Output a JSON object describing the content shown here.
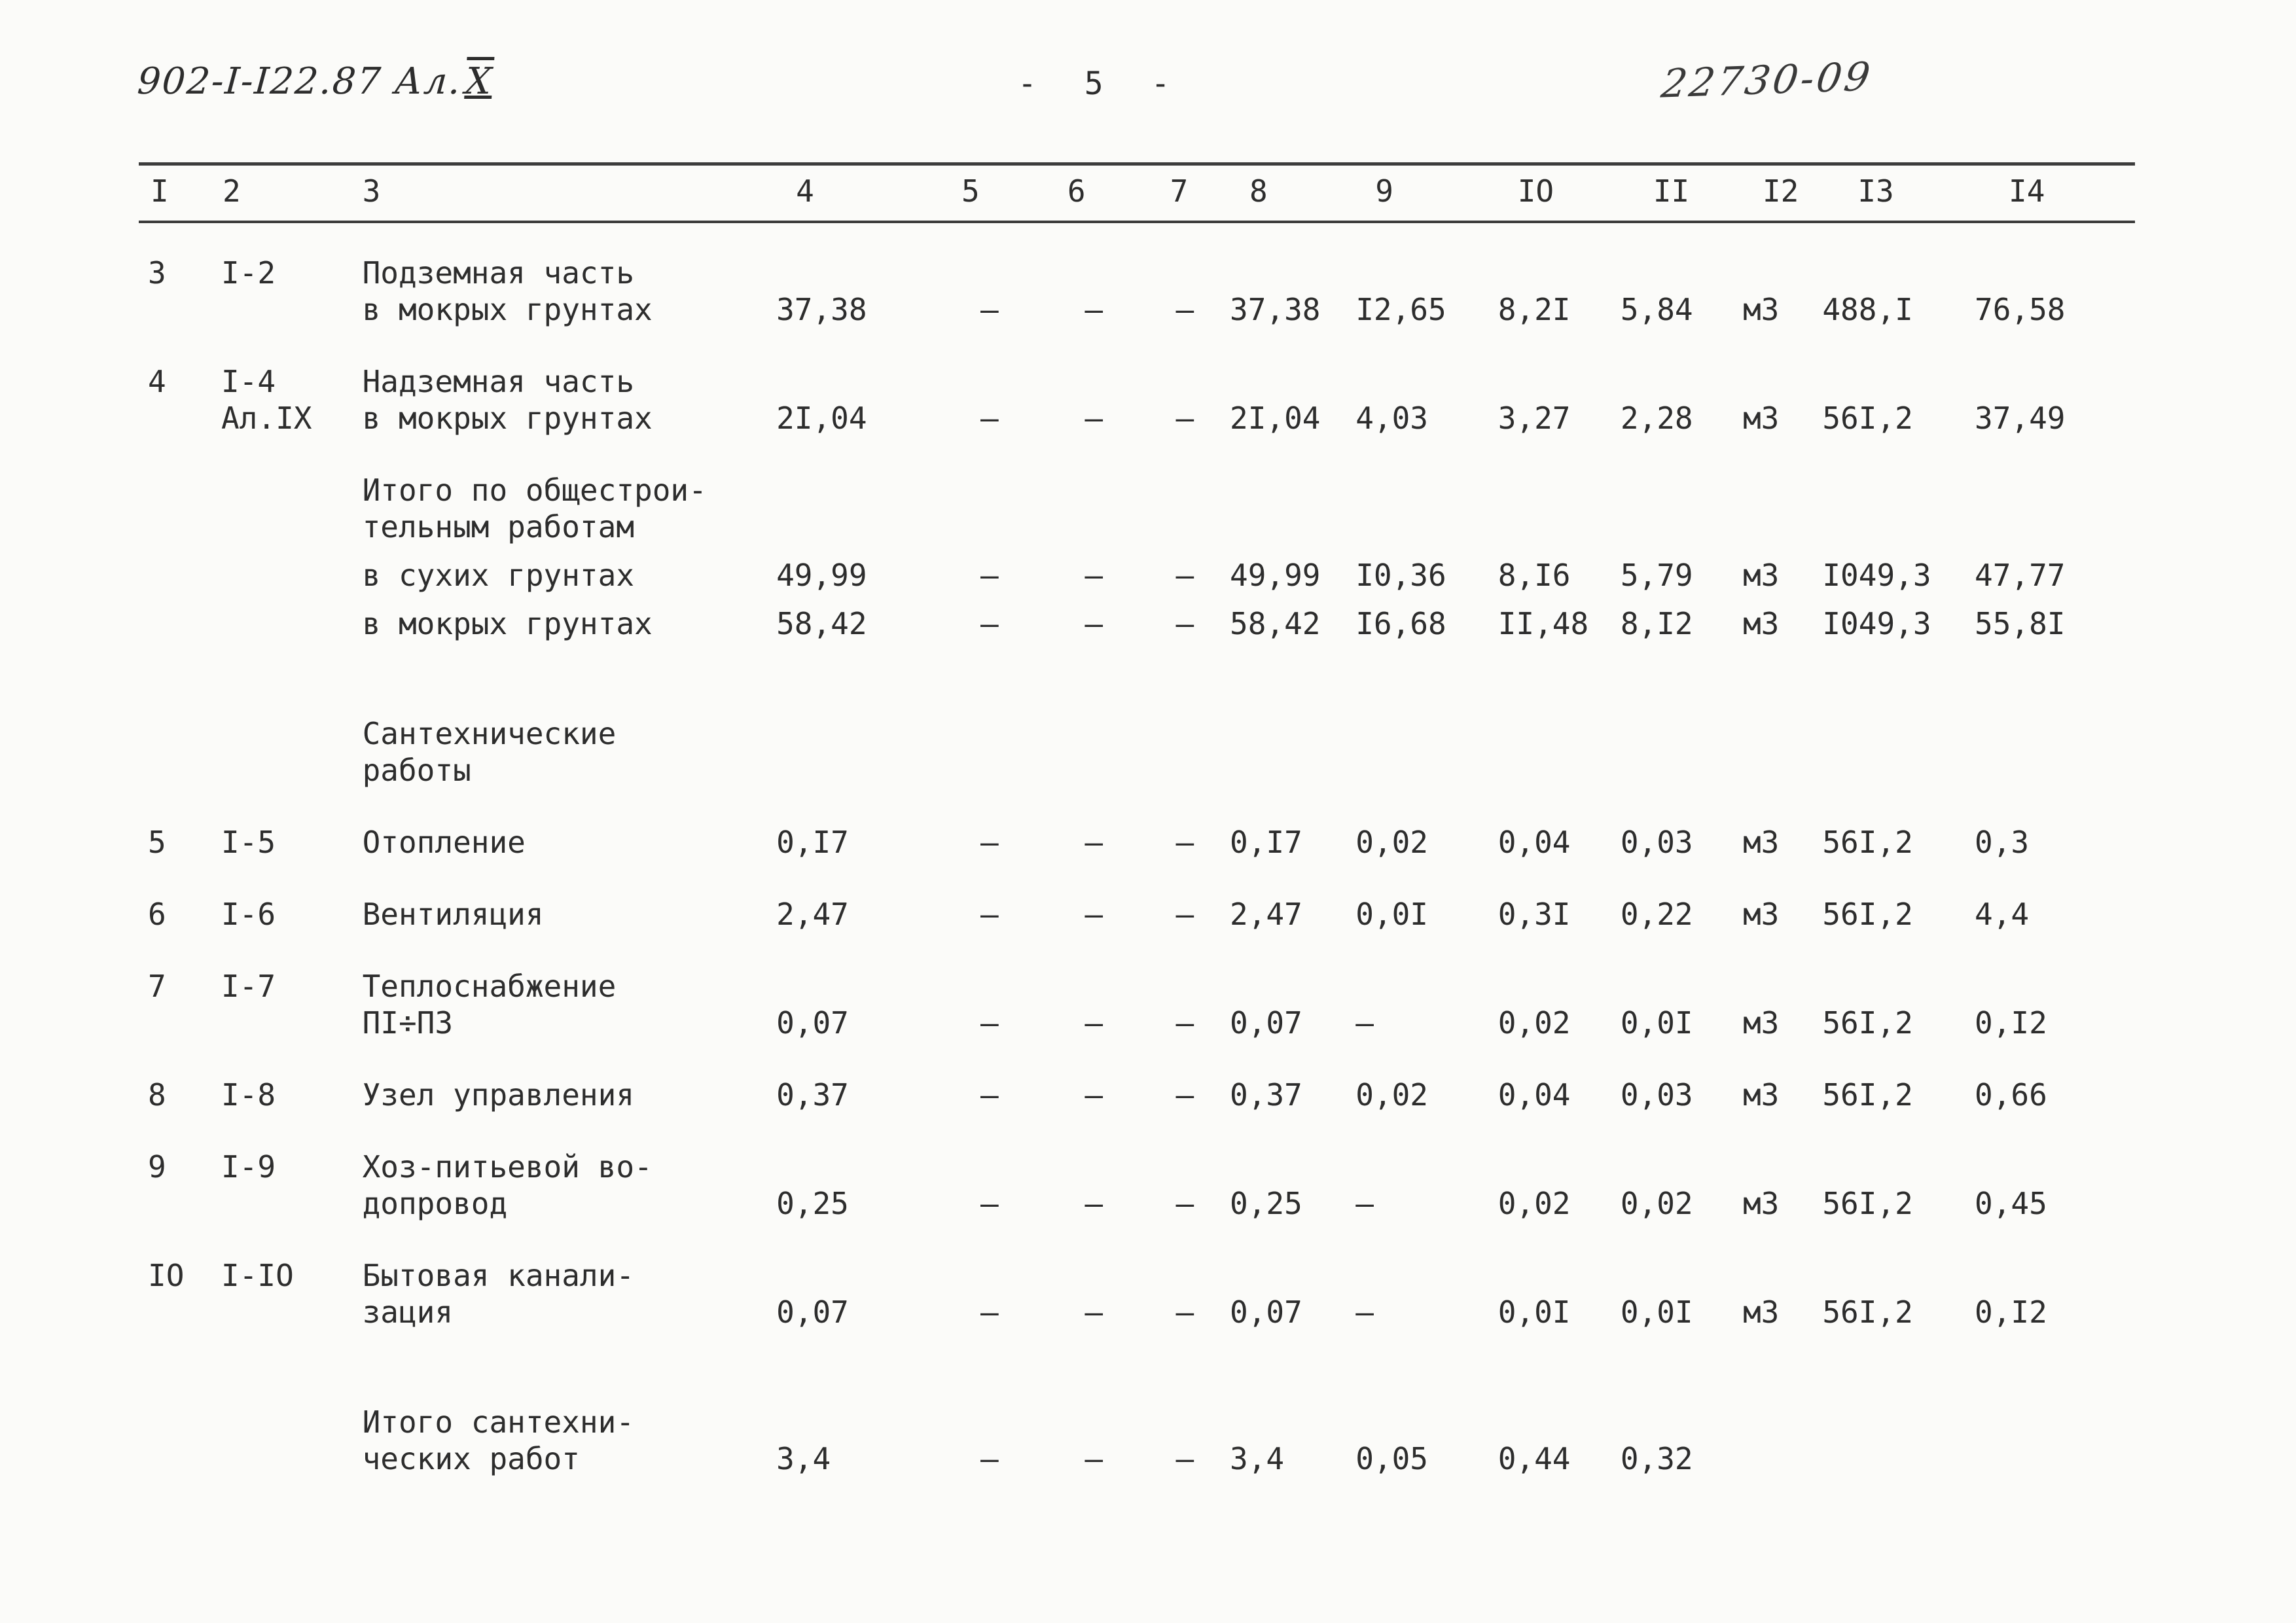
{
  "header": {
    "doc_number_prefix": "902-I-I22.87 Ал.",
    "doc_number_roman": "X",
    "page_number": "- 5 -",
    "stamp": "22730-09"
  },
  "table": {
    "column_headers": [
      "I",
      "2",
      "3",
      "4",
      "5",
      "6",
      "7",
      "8",
      "9",
      "IO",
      "II",
      "I2",
      "I3",
      "I4"
    ],
    "rows": [
      {
        "style": "",
        "cells": {
          "n": "3",
          "code": "I-2",
          "name": "Подземная часть\nв мокрых грунтах",
          "c4": "37,38",
          "c5": "–",
          "c6": "–",
          "c7": "–",
          "c8": "37,38",
          "c9": "I2,65",
          "c10": "8,2I",
          "c11": "5,84",
          "c12": "м3",
          "c13": "488,I",
          "c14": "76,58"
        }
      },
      {
        "style": "",
        "cells": {
          "n": "4",
          "code": "I-4\nАл.IX",
          "name": "Надземная часть\nв мокрых грунтах",
          "c4": "2I,04",
          "c5": "–",
          "c6": "–",
          "c7": "–",
          "c8": "2I,04",
          "c9": "4,03",
          "c10": "3,27",
          "c11": "2,28",
          "c12": "м3",
          "c13": "56I,2",
          "c14": "37,49"
        }
      },
      {
        "style": "tight",
        "cells": {
          "n": "",
          "code": "",
          "name": "Итого по общестрои-\nтельным работам",
          "c4": "",
          "c5": "",
          "c6": "",
          "c7": "",
          "c8": "",
          "c9": "",
          "c10": "",
          "c11": "",
          "c12": "",
          "c13": "",
          "c14": ""
        }
      },
      {
        "style": "tight",
        "cells": {
          "n": "",
          "code": "",
          "name": "в сухих грунтах",
          "c4": "49,99",
          "c5": "–",
          "c6": "–",
          "c7": "–",
          "c8": "49,99",
          "c9": "I0,36",
          "c10": "8,I6",
          "c11": "5,79",
          "c12": "м3",
          "c13": "I049,3",
          "c14": "47,77"
        }
      },
      {
        "style": "",
        "cells": {
          "n": "",
          "code": "",
          "name": "в мокрых грунтах",
          "c4": "58,42",
          "c5": "–",
          "c6": "–",
          "c7": "–",
          "c8": "58,42",
          "c9": "I6,68",
          "c10": "II,48",
          "c11": "8,I2",
          "c12": "м3",
          "c13": "I049,3",
          "c14": "55,8I"
        }
      },
      {
        "style": "gap-top",
        "cells": {
          "n": "",
          "code": "",
          "name": "Сантехнические\nработы",
          "c4": "",
          "c5": "",
          "c6": "",
          "c7": "",
          "c8": "",
          "c9": "",
          "c10": "",
          "c11": "",
          "c12": "",
          "c13": "",
          "c14": ""
        }
      },
      {
        "style": "",
        "cells": {
          "n": "5",
          "code": "I-5",
          "name": "Отопление",
          "c4": "0,I7",
          "c5": "–",
          "c6": "–",
          "c7": "–",
          "c8": "0,I7",
          "c9": "0,02",
          "c10": "0,04",
          "c11": "0,03",
          "c12": "м3",
          "c13": "56I,2",
          "c14": "0,3"
        }
      },
      {
        "style": "",
        "cells": {
          "n": "6",
          "code": "I-6",
          "name": "Вентиляция",
          "c4": "2,47",
          "c5": "–",
          "c6": "–",
          "c7": "–",
          "c8": "2,47",
          "c9": "0,0I",
          "c10": "0,3I",
          "c11": "0,22",
          "c12": "м3",
          "c13": "56I,2",
          "c14": "4,4"
        }
      },
      {
        "style": "",
        "cells": {
          "n": "7",
          "code": "I-7",
          "name": "Теплоснабжение\nПI÷П3",
          "c4": "0,07",
          "c5": "–",
          "c6": "–",
          "c7": "–",
          "c8": "0,07",
          "c9": "–",
          "c10": "0,02",
          "c11": "0,0I",
          "c12": "м3",
          "c13": "56I,2",
          "c14": "0,I2"
        }
      },
      {
        "style": "",
        "cells": {
          "n": "8",
          "code": "I-8",
          "name": "Узел управления",
          "c4": "0,37",
          "c5": "–",
          "c6": "–",
          "c7": "–",
          "c8": "0,37",
          "c9": "0,02",
          "c10": "0,04",
          "c11": "0,03",
          "c12": "м3",
          "c13": "56I,2",
          "c14": "0,66"
        }
      },
      {
        "style": "",
        "cells": {
          "n": "9",
          "code": "I-9",
          "name": "Хоз-питьевой во-\nдопровод",
          "c4": "0,25",
          "c5": "–",
          "c6": "–",
          "c7": "–",
          "c8": "0,25",
          "c9": "–",
          "c10": "0,02",
          "c11": "0,02",
          "c12": "м3",
          "c13": "56I,2",
          "c14": "0,45"
        }
      },
      {
        "style": "",
        "cells": {
          "n": "IO",
          "code": "I-IO",
          "name": "Бытовая канали-\nзация",
          "c4": "0,07",
          "c5": "–",
          "c6": "–",
          "c7": "–",
          "c8": "0,07",
          "c9": "–",
          "c10": "0,0I",
          "c11": "0,0I",
          "c12": "м3",
          "c13": "56I,2",
          "c14": "0,I2"
        }
      },
      {
        "style": "gap-top",
        "cells": {
          "n": "",
          "code": "",
          "name": "Итого сантехни-\nческих работ",
          "c4": "3,4",
          "c5": "–",
          "c6": "–",
          "c7": "–",
          "c8": "3,4",
          "c9": "0,05",
          "c10": "0,44",
          "c11": "0,32",
          "c12": "",
          "c13": "",
          "c14": ""
        }
      }
    ]
  }
}
